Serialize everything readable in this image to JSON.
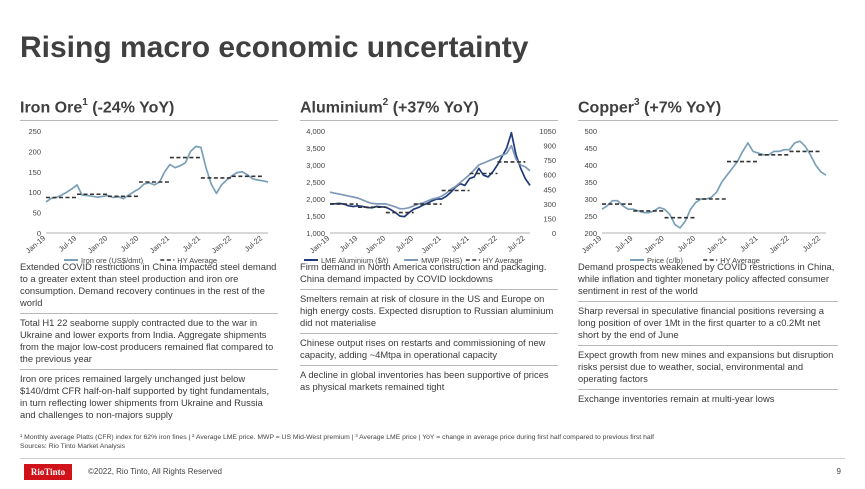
{
  "page": {
    "title": "Rising macro economic uncertainty",
    "footnote_line1": "¹ Monthly average Platts (CFR) index for 62% iron fines  |  ² Average LME price. MWP = US Mid-West premium | ³ Average LME price | YoY = change in average price during first half compared to previous first half",
    "footnote_line2": "Sources: Rio Tinto Market Analysis",
    "copyright": "©2022, Rio Tinto, All Rights Reserved",
    "page_number": "9",
    "logo_text": "RioTinto"
  },
  "columns": [
    {
      "title": "Iron Ore",
      "sup": "1",
      "change": "(-24% YoY)",
      "bullets": [
        "Extended COVID restrictions in China impacted steel demand to a greater extent than steel production and iron ore consumption. Demand recovery continues in the rest of the world",
        "Total H1 22 seaborne supply contracted due to the war in Ukraine and lower exports from India. Aggregate shipments from the major low-cost producers remained flat compared to the previous year",
        "Iron ore prices remained largely unchanged just below $140/dmt CFR half-on-half supported by tight fundamentals, in turn reflecting lower shipments from Ukraine and Russia and challenges to non-majors supply"
      ]
    },
    {
      "title": "Aluminium",
      "sup": "2",
      "change": "(+37% YoY)",
      "bullets": [
        "Firm demand in North America construction and packaging. China demand impacted by COVID lockdowns",
        "Smelters remain at risk of closure in the US and Europe on high energy costs. Expected disruption to Russian aluminium did not materialise",
        "Chinese output rises on restarts and commissioning of new capacity, adding ~4Mtpa in operational capacity",
        "A decline in global inventories has been supportive of prices as physical markets remained tight"
      ]
    },
    {
      "title": "Copper",
      "sup": "3",
      "change": "(+7% YoY)",
      "bullets": [
        "Demand prospects weakened by COVID restrictions in China, while inflation and tighter monetary policy affected consumer sentiment in rest of the world",
        "Sharp reversal in speculative financial positions reversing a long position of over 1Mt in the first quarter to a c0.2Mt net short by the end of June",
        "Expect growth from new mines and expansions but disruption risks persist due to weather, social, environmental and operating factors",
        "Exchange inventories remain at multi-year lows"
      ]
    }
  ],
  "colors": {
    "iron": "#7aa0b8",
    "alu": "#1f3b7a",
    "mwp": "#7f97b8",
    "copper": "#7aa0b8",
    "avg": "#333333"
  },
  "chart_data": [
    {
      "type": "line",
      "title": "Iron Ore",
      "x_ticks": [
        "Jan-19",
        "Jul-19",
        "Jan-20",
        "Jul-20",
        "Jan-21",
        "Jul-21",
        "Jan-22",
        "Jul-22"
      ],
      "ylim": [
        0,
        250
      ],
      "y_ticks": [
        0,
        50,
        100,
        150,
        200,
        250
      ],
      "legend": "bottom",
      "series": [
        {
          "name": "Iron ore (US$/dmt)",
          "style": "solid",
          "t": [
            0,
            1,
            2,
            3,
            4,
            5,
            6,
            7,
            8,
            9,
            10,
            11,
            12,
            13,
            14,
            15,
            16,
            17,
            18,
            19,
            20,
            21,
            22,
            23,
            24,
            25,
            26,
            27,
            28,
            29,
            30,
            31,
            32,
            33,
            34,
            35,
            36,
            37,
            38,
            39,
            40,
            41,
            42,
            43
          ],
          "values": [
            76,
            85,
            87,
            93,
            100,
            108,
            118,
            93,
            92,
            90,
            88,
            90,
            92,
            87,
            89,
            84,
            93,
            101,
            108,
            120,
            123,
            118,
            125,
            150,
            168,
            160,
            165,
            172,
            200,
            212,
            210,
            160,
            120,
            97,
            118,
            130,
            140,
            148,
            150,
            143,
            133,
            130,
            128,
            125
          ]
        },
        {
          "name": "HY Average",
          "style": "dashed",
          "segments": [
            {
              "t": [
                0,
                6
              ],
              "value": 87
            },
            {
              "t": [
                6,
                12
              ],
              "value": 95
            },
            {
              "t": [
                12,
                18
              ],
              "value": 90
            },
            {
              "t": [
                18,
                24
              ],
              "value": 125
            },
            {
              "t": [
                24,
                30
              ],
              "value": 185
            },
            {
              "t": [
                30,
                36
              ],
              "value": 135
            },
            {
              "t": [
                36,
                42
              ],
              "value": 139
            }
          ]
        }
      ]
    },
    {
      "type": "line",
      "title": "Aluminium",
      "x_ticks": [
        "Jan-19",
        "Jul-19",
        "Jan-20",
        "Jul-20",
        "Jan-21",
        "Jul-21",
        "Jan-22",
        "Jul-22"
      ],
      "ylim": [
        1000,
        4000
      ],
      "y_ticks": [
        1000,
        1500,
        2000,
        2500,
        3000,
        3500,
        4000
      ],
      "ylim_right": [
        0,
        1050
      ],
      "y_ticks_right": [
        0,
        150,
        300,
        450,
        600,
        750,
        900,
        1050
      ],
      "legend": "bottom",
      "series": [
        {
          "name": "LME Aluminium ($/t)",
          "style": "solid",
          "axis": "left",
          "t": [
            0,
            1,
            2,
            3,
            4,
            5,
            6,
            7,
            8,
            9,
            10,
            11,
            12,
            13,
            14,
            15,
            16,
            17,
            18,
            19,
            20,
            21,
            22,
            23,
            24,
            25,
            26,
            27,
            28,
            29,
            30,
            31,
            32,
            33,
            34,
            35,
            36,
            37,
            38,
            39,
            40,
            41,
            42,
            43
          ],
          "values": [
            1860,
            1860,
            1870,
            1850,
            1800,
            1780,
            1800,
            1780,
            1750,
            1740,
            1780,
            1770,
            1760,
            1690,
            1610,
            1500,
            1480,
            1600,
            1700,
            1750,
            1820,
            1880,
            1950,
            2000,
            2000,
            2080,
            2200,
            2350,
            2450,
            2400,
            2600,
            2650,
            2900,
            2700,
            2650,
            2800,
            3000,
            3250,
            3500,
            3950,
            3300,
            2900,
            2600,
            2400
          ]
        },
        {
          "name": "MWP (RHS)",
          "style": "solid",
          "axis": "right",
          "t": [
            0,
            1,
            2,
            3,
            4,
            5,
            6,
            7,
            8,
            9,
            10,
            11,
            12,
            13,
            14,
            15,
            16,
            17,
            18,
            19,
            20,
            21,
            22,
            23,
            24,
            25,
            26,
            27,
            28,
            29,
            30,
            31,
            32,
            33,
            34,
            35,
            36,
            37,
            38,
            39,
            40,
            41,
            42,
            43
          ],
          "values": [
            420,
            410,
            400,
            390,
            380,
            370,
            360,
            340,
            320,
            305,
            300,
            300,
            300,
            285,
            270,
            250,
            250,
            260,
            280,
            300,
            310,
            330,
            350,
            360,
            380,
            410,
            450,
            480,
            520,
            560,
            600,
            650,
            700,
            720,
            740,
            760,
            780,
            800,
            820,
            900,
            760,
            700,
            680,
            640
          ]
        },
        {
          "name": "HY Average",
          "style": "dashed",
          "axis": "left",
          "segments": [
            {
              "t": [
                0,
                6
              ],
              "value": 1850
            },
            {
              "t": [
                6,
                12
              ],
              "value": 1760
            },
            {
              "t": [
                12,
                18
              ],
              "value": 1600
            },
            {
              "t": [
                18,
                24
              ],
              "value": 1850
            },
            {
              "t": [
                24,
                30
              ],
              "value": 2250
            },
            {
              "t": [
                30,
                36
              ],
              "value": 2750
            },
            {
              "t": [
                36,
                42
              ],
              "value": 3090
            }
          ]
        }
      ]
    },
    {
      "type": "line",
      "title": "Copper",
      "x_ticks": [
        "Jan-19",
        "Jul-19",
        "Jan-20",
        "Jul-20",
        "Jan-21",
        "Jul-21",
        "Jan-22",
        "Jul-22"
      ],
      "ylim": [
        200,
        500
      ],
      "y_ticks": [
        200,
        250,
        300,
        350,
        400,
        450,
        500
      ],
      "legend": "bottom",
      "series": [
        {
          "name": "Price (c/lb)",
          "style": "solid",
          "t": [
            0,
            1,
            2,
            3,
            4,
            5,
            6,
            7,
            8,
            9,
            10,
            11,
            12,
            13,
            14,
            15,
            16,
            17,
            18,
            19,
            20,
            21,
            22,
            23,
            24,
            25,
            26,
            27,
            28,
            29,
            30,
            31,
            32,
            33,
            34,
            35,
            36,
            37,
            38,
            39,
            40,
            41,
            42,
            43
          ],
          "values": [
            270,
            280,
            295,
            295,
            280,
            270,
            270,
            265,
            260,
            260,
            265,
            275,
            270,
            255,
            225,
            215,
            235,
            270,
            290,
            300,
            300,
            305,
            320,
            350,
            370,
            390,
            410,
            440,
            465,
            440,
            435,
            430,
            430,
            440,
            440,
            445,
            445,
            465,
            470,
            455,
            430,
            400,
            380,
            370
          ]
        },
        {
          "name": "HY Average",
          "style": "dashed",
          "segments": [
            {
              "t": [
                0,
                6
              ],
              "value": 285
            },
            {
              "t": [
                6,
                12
              ],
              "value": 265
            },
            {
              "t": [
                12,
                18
              ],
              "value": 245
            },
            {
              "t": [
                18,
                24
              ],
              "value": 300
            },
            {
              "t": [
                24,
                30
              ],
              "value": 410
            },
            {
              "t": [
                30,
                36
              ],
              "value": 430
            },
            {
              "t": [
                36,
                42
              ],
              "value": 440
            }
          ]
        }
      ]
    }
  ]
}
